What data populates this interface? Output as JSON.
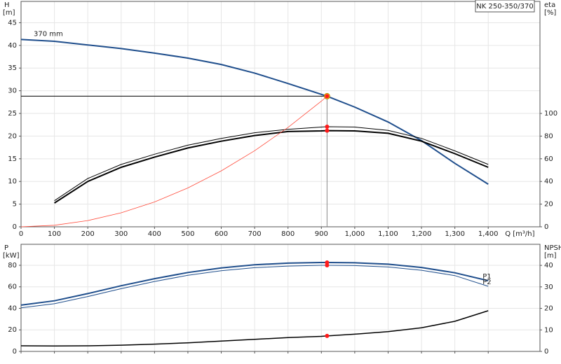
{
  "chart_data": [
    {
      "type": "line",
      "title": "NK 250-350/370",
      "ylabel": "H",
      "yunit": "[m]",
      "y2label": "eta",
      "y2unit": "[%]",
      "xlabel": "Q [m³/h]",
      "x": [
        0,
        100,
        200,
        300,
        400,
        500,
        600,
        700,
        800,
        900,
        917,
        1000,
        1100,
        1200,
        1300,
        1400
      ],
      "series": [
        {
          "name": "370 mm",
          "color": "#1f4e8c",
          "line_width": 2,
          "values": [
            41.3,
            40.9,
            40.1,
            39.3,
            38.3,
            37.2,
            35.8,
            33.9,
            31.6,
            29.2,
            28.8,
            26.4,
            23.1,
            19,
            14,
            9.4
          ]
        },
        {
          "color": "#000000",
          "line_width": 1,
          "axis": "y2",
          "values": [
            null,
            23,
            42.6,
            55,
            64,
            72,
            78,
            83,
            86,
            88,
            88.3,
            88,
            85,
            78,
            67,
            55
          ]
        },
        {
          "color": "#000000",
          "line_width": 2,
          "axis": "y2",
          "values": [
            null,
            21,
            40,
            52.5,
            61.5,
            69.5,
            75.5,
            80.5,
            84,
            84.6,
            84.8,
            84.6,
            82.5,
            75.5,
            64.5,
            52.5
          ]
        },
        {
          "color": "#ff4a3a",
          "line_width": 0.8,
          "values": [
            0,
            0.34,
            1.37,
            3.08,
            5.48,
            8.56,
            12.33,
            16.78,
            21.9,
            27.7,
            28.8,
            null,
            null,
            null,
            null,
            null
          ]
        }
      ],
      "operating_index": 10,
      "operating_color": "#ffd21f",
      "marker_color": "#ff1a1a",
      "xlim": [
        0,
        1555
      ],
      "ylim": [
        0,
        49.7
      ],
      "y2lim": [
        0,
        198.8
      ],
      "xticks": [
        0,
        100,
        200,
        300,
        400,
        500,
        600,
        700,
        800,
        900,
        {
          "value": 1000,
          "label": "1,000"
        },
        {
          "value": 1100,
          "label": "1,100"
        },
        {
          "value": 1200,
          "label": "1,200"
        },
        {
          "value": 1300,
          "label": "1,300"
        },
        {
          "value": 1400,
          "label": "1,400"
        }
      ],
      "yticks": [
        0,
        5,
        10,
        15,
        20,
        25,
        30,
        35,
        40,
        45
      ],
      "y2ticks": [
        0,
        20,
        40,
        60,
        80,
        100
      ],
      "grid": true
    },
    {
      "type": "line",
      "ylabel": "P",
      "yunit": "[kW]",
      "y2label": "NPSH",
      "y2unit": "[m]",
      "x": [
        0,
        100,
        200,
        300,
        400,
        500,
        600,
        700,
        800,
        900,
        917,
        1000,
        1100,
        1200,
        1300,
        1400
      ],
      "series": [
        {
          "name": "P1",
          "color": "#1f4e8c",
          "line_width": 2,
          "values": [
            43,
            47,
            53.7,
            61,
            67.6,
            73.3,
            77.6,
            80.5,
            82,
            82.6,
            82.6,
            82.3,
            81,
            78,
            73,
            65.7
          ]
        },
        {
          "name": "P2",
          "color": "#1f4e8c",
          "line_width": 1,
          "values": [
            40.5,
            44.3,
            51,
            58.3,
            65,
            70.7,
            75,
            77.8,
            79.3,
            80,
            80,
            79.7,
            78.4,
            75.4,
            70.4,
            60.5
          ]
        },
        {
          "color": "#000000",
          "line_width": 1.5,
          "axis": "y2",
          "values": [
            2.6,
            2.5,
            2.6,
            2.9,
            3.4,
            4,
            4.8,
            5.6,
            6.4,
            7,
            7.2,
            8,
            9.2,
            11,
            14,
            18.9
          ]
        }
      ],
      "operating_index": 10,
      "marker_color": "#ff1a1a",
      "xlim": [
        0,
        1555
      ],
      "ylim": [
        0,
        99.5
      ],
      "y2lim": [
        0,
        49.8
      ],
      "xticks": [
        0,
        100,
        200,
        300,
        400,
        500,
        600,
        700,
        800,
        900,
        1000,
        1100,
        1200,
        1300,
        1400
      ],
      "x_tick_labels": false,
      "yticks": [
        0,
        20,
        40,
        60,
        80
      ],
      "y2ticks": [
        0,
        10,
        20,
        30,
        40
      ],
      "grid": true
    }
  ]
}
